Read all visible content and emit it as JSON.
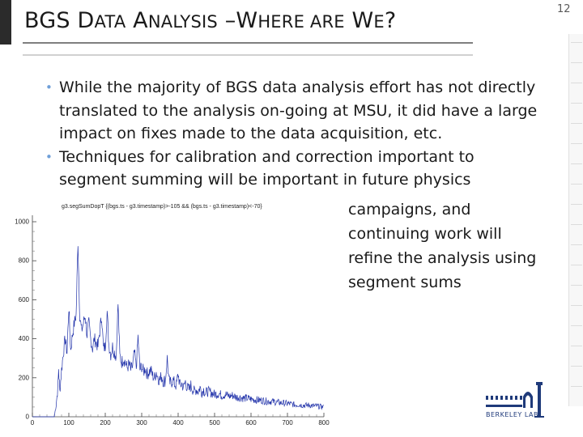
{
  "slide": {
    "number": "12",
    "title": {
      "p1": "BGS D",
      "p2": "ATA",
      "p3": " A",
      "p4": "NALYSIS",
      "p5": " –W",
      "p6": "HERE ARE",
      "p7": " W",
      "p8": "E",
      "p9": "?"
    }
  },
  "bullets": [
    {
      "lines": [
        "While the majority of BGS data analysis effort has not directly",
        "translated to the analysis on-going at MSU, it did have a large",
        "impact on fixes made to the data acquisition, etc."
      ]
    },
    {
      "lines": [
        "Techniques for calibration and correction important to",
        "segment summing will be important in future physics"
      ],
      "continued": [
        "campaigns, and",
        "continuing work will",
        "refine the analysis using",
        "segment sums"
      ]
    }
  ],
  "plot": {
    "caption": "g3.segSumDopT {(bgs.ts - g3.timestamp)>-105 && (bgs.ts - g3.timestamp)<-70}",
    "chart_data": {
      "type": "line",
      "title": "g3.segSumDopT {(bgs.ts - g3.timestamp)>-105 && (bgs.ts - g3.timestamp)<-70}",
      "xlabel": "",
      "ylabel": "",
      "xlim": [
        0,
        800
      ],
      "ylim": [
        0,
        1000
      ],
      "x_ticks": [
        "0",
        "100",
        "200",
        "300",
        "400",
        "500",
        "600",
        "700",
        "800"
      ],
      "y_ticks": [
        "0",
        "200",
        "400",
        "600",
        "800",
        "1000"
      ],
      "series": [
        {
          "x": [
            0,
            60,
            65,
            70,
            72,
            75,
            80,
            85,
            90,
            95,
            100,
            105,
            110,
            115,
            120,
            125,
            130,
            135,
            140,
            145,
            150,
            155,
            160,
            165,
            170,
            175,
            180,
            185,
            190,
            195,
            200,
            205,
            210,
            215,
            220,
            225,
            230,
            235,
            240,
            245,
            250,
            255,
            260,
            265,
            270,
            275,
            280,
            285,
            290,
            295,
            300,
            305,
            310,
            315,
            320,
            325,
            330,
            335,
            340,
            345,
            350,
            355,
            360,
            365,
            370,
            375,
            380,
            385,
            390,
            395,
            400,
            405,
            410,
            415,
            420,
            425,
            430,
            435,
            440,
            445,
            450,
            455,
            460,
            465,
            470,
            475,
            480,
            490,
            500,
            510,
            520,
            530,
            540,
            550,
            560,
            570,
            580,
            590,
            600,
            610,
            620,
            630,
            640,
            650,
            660,
            670,
            680,
            690,
            700,
            710,
            720,
            730,
            740,
            750,
            760,
            770,
            780,
            790,
            800
          ],
          "y": [
            0,
            0,
            60,
            150,
            250,
            130,
            240,
            330,
            400,
            330,
            560,
            340,
            420,
            480,
            520,
            900,
            520,
            440,
            480,
            520,
            420,
            480,
            400,
            350,
            400,
            380,
            360,
            440,
            520,
            350,
            360,
            540,
            370,
            320,
            360,
            330,
            310,
            580,
            310,
            280,
            300,
            280,
            250,
            270,
            240,
            260,
            330,
            250,
            410,
            240,
            260,
            230,
            250,
            220,
            230,
            240,
            210,
            200,
            230,
            200,
            190,
            210,
            180,
            190,
            300,
            180,
            170,
            190,
            170,
            160,
            220,
            160,
            170,
            150,
            180,
            150,
            140,
            160,
            140,
            130,
            140,
            130,
            150,
            125,
            140,
            120,
            130,
            125,
            115,
            120,
            110,
            115,
            105,
            110,
            100,
            100,
            95,
            95,
            90,
            88,
            85,
            85,
            80,
            80,
            78,
            75,
            72,
            70,
            68,
            65,
            62,
            62,
            60,
            58,
            60,
            55,
            55,
            52,
            50
          ]
        }
      ],
      "grid": false,
      "legend": "none"
    }
  },
  "logo": {
    "text": "BERKELEY LAB"
  },
  "colors": {
    "bullet": "#6f9fd8",
    "line": "#2233aa",
    "logo": "#1f3a7a"
  }
}
